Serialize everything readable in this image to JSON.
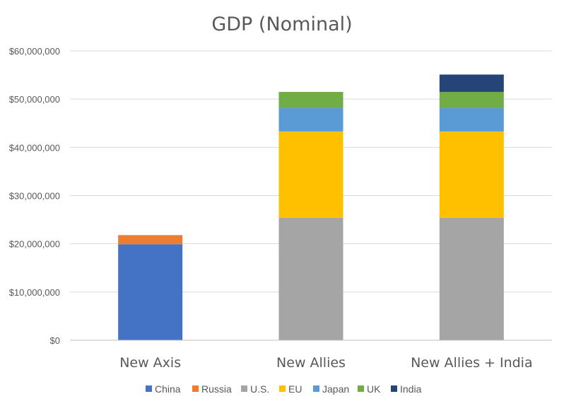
{
  "chart_data": {
    "type": "bar",
    "stacked": true,
    "title": "GDP (Nominal)",
    "xlabel": "",
    "ylabel": "",
    "categories": [
      "New Axis",
      "New Allies",
      "New Allies + India"
    ],
    "ylim": [
      0,
      60000000
    ],
    "yticks": [
      0,
      10000000,
      20000000,
      30000000,
      40000000,
      50000000,
      60000000
    ],
    "ytick_labels": [
      "$0",
      "$10,000,000",
      "$20,000,000",
      "$30,000,000",
      "$40,000,000",
      "$50,000,000",
      "$60,000,000"
    ],
    "grid": true,
    "legend_position": "bottom",
    "series": [
      {
        "name": "China",
        "color": "#4472C4",
        "values": [
          19900000,
          0,
          0
        ]
      },
      {
        "name": "Russia",
        "color": "#ED7D31",
        "values": [
          1900000,
          0,
          0
        ]
      },
      {
        "name": "U.S.",
        "color": "#A5A5A5",
        "values": [
          0,
          25400000,
          25400000
        ]
      },
      {
        "name": "EU",
        "color": "#FFC000",
        "values": [
          0,
          17900000,
          17900000
        ]
      },
      {
        "name": "Japan",
        "color": "#5B9BD5",
        "values": [
          0,
          4900000,
          4900000
        ]
      },
      {
        "name": "UK",
        "color": "#70AD47",
        "values": [
          0,
          3300000,
          3300000
        ]
      },
      {
        "name": "India",
        "color": "#264478",
        "values": [
          0,
          0,
          3600000
        ]
      }
    ]
  }
}
